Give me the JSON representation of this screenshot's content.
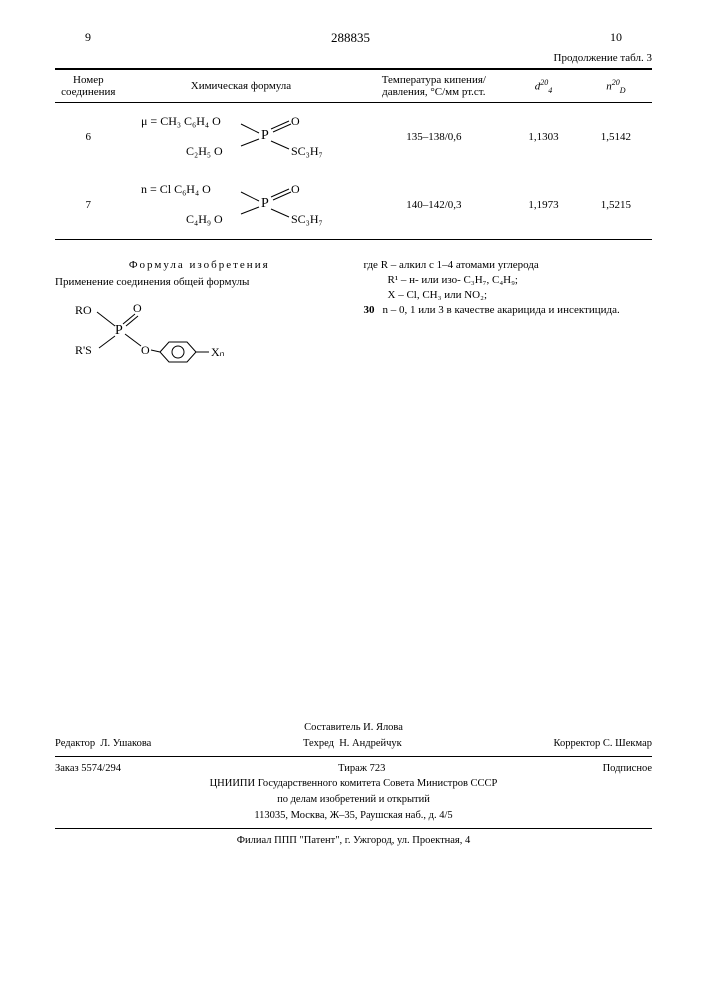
{
  "header": {
    "left_pagenum": "9",
    "doc_number": "288835",
    "right_pagenum": "10",
    "table_continuation": "Продолжение табл. 3"
  },
  "table": {
    "columns": {
      "c1": "Номер соеди­нения",
      "c2": "Химическая формула",
      "c3": "Температура кипе­ния/давления, °С/мм рт.ст.",
      "c4_html": "d<span class='super'>20</span><span class='subsc'>4</span>",
      "c5_html": "n<span class='super'>20</span><span class='subsc'>D</span>"
    },
    "rows": [
      {
        "num": "6",
        "formula_top": "μ = CH₃ C₆H₄ O",
        "formula_mid": "P",
        "formula_o": "O",
        "formula_bot1": "C₂H₅ O",
        "formula_bot2": "SC₃H₇",
        "bp": "135–138/0,6",
        "d": "1,1303",
        "n": "1,5142"
      },
      {
        "num": "7",
        "formula_top": "n = Cl C₆H₄ O",
        "formula_mid": "P",
        "formula_o": "O",
        "formula_bot1": "C₄H₉ O",
        "formula_bot2": "SC₃H₇",
        "bp": "140–142/0,3",
        "d": "1,1973",
        "n": "1,5215"
      }
    ]
  },
  "claim": {
    "title": "Формула изобретения",
    "intro": "Применение соединения общей формулы",
    "formula_RO": "RO",
    "formula_O": "O",
    "formula_P": "P",
    "formula_RS": "R'S",
    "formula_Oring": "O",
    "formula_Xn": "Xₙ",
    "line1": "где R – алкил с 1–4 атомами углерода",
    "line2": "R¹ – н- или изо- C₃H₇, C₄H₉;",
    "line3": "X – Cl, CH₃ или NO₂;",
    "line4": "n – 0, 1 или 3 в качестве акарицида и инсекти­цида.",
    "margin_num": "30"
  },
  "footer": {
    "compiler": "Составитель И. Ялова",
    "editor_label": "Редактор",
    "editor": "Л. Ушакова",
    "techred_label": "Техред",
    "techred": "Н. Андрейчук",
    "corrector_label": "Корректор",
    "corrector": "С. Шекмар",
    "order": "Заказ 5574/294",
    "tirazh": "Тираж  723",
    "subscr": "Подписное",
    "org1": "ЦНИИПИ Государственного комитета Совета Министров СССР",
    "org2": "по делам изобретений и открытий",
    "addr1": "113035, Москва, Ж–35, Раушская наб., д. 4/5",
    "branch": "Филиал ППП \"Патент\", г. Ужгород, ул. Проектная, 4"
  }
}
